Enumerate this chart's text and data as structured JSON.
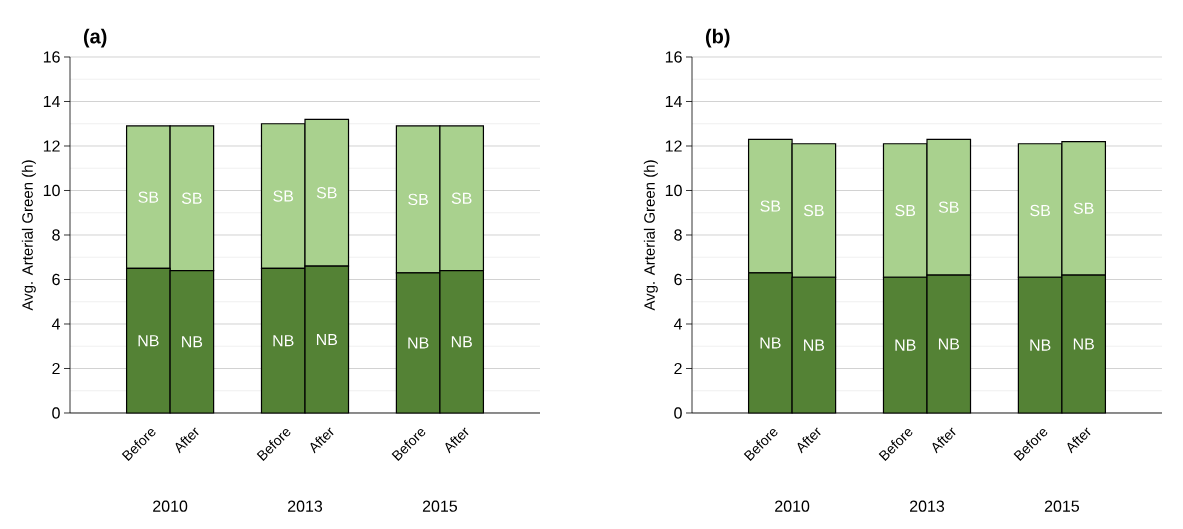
{
  "chart_data": [
    {
      "type": "bar",
      "title": "(a)",
      "ylabel": "Avg. Arterial Green (h)",
      "categories": [
        "Before",
        "After",
        "Before",
        "After",
        "Before",
        "After"
      ],
      "stacked": true,
      "ylim": [
        0,
        16
      ],
      "yticks": [
        0,
        2,
        4,
        6,
        8,
        10,
        12,
        14,
        16
      ],
      "grid": "y",
      "annotations": [
        "2010",
        "2013",
        "2015"
      ],
      "series": [
        {
          "name": "NB",
          "color": "#548235",
          "values": [
            6.5,
            6.4,
            6.5,
            6.6,
            6.3,
            6.4
          ]
        },
        {
          "name": "SB",
          "color": "#a9d18e",
          "values": [
            6.4,
            6.5,
            6.5,
            6.6,
            6.6,
            6.5
          ]
        }
      ]
    },
    {
      "type": "bar",
      "title": "(b)",
      "ylabel": "Avg. Arterial Green (h)",
      "categories": [
        "Before",
        "After",
        "Before",
        "After",
        "Before",
        "After"
      ],
      "stacked": true,
      "ylim": [
        0,
        16
      ],
      "yticks": [
        0,
        2,
        4,
        6,
        8,
        10,
        12,
        14,
        16
      ],
      "grid": "y",
      "annotations": [
        "2010",
        "2013",
        "2015"
      ],
      "series": [
        {
          "name": "NB",
          "color": "#548235",
          "values": [
            6.3,
            6.1,
            6.1,
            6.2,
            6.1,
            6.2
          ]
        },
        {
          "name": "SB",
          "color": "#a9d18e",
          "values": [
            6.0,
            6.0,
            6.0,
            6.1,
            6.0,
            6.0
          ]
        }
      ]
    }
  ]
}
